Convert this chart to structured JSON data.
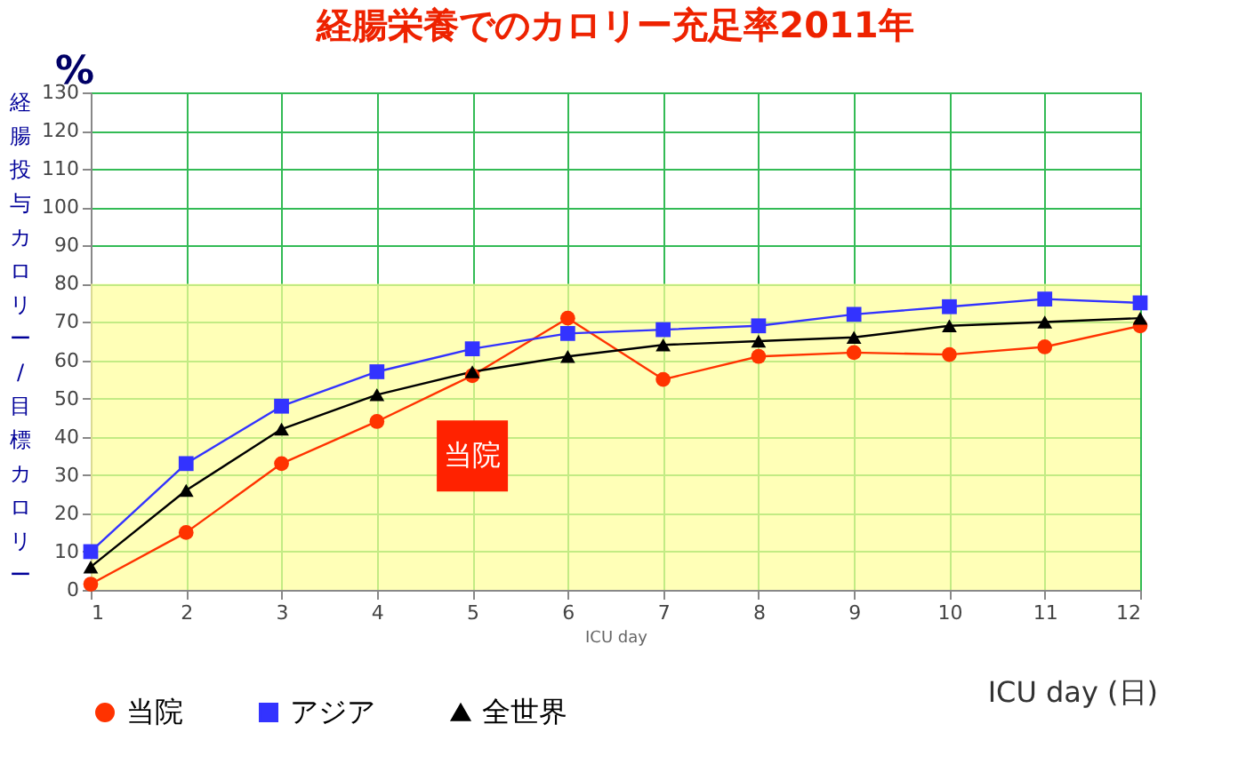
{
  "chart_data": {
    "type": "line",
    "title": "経腸栄養でのカロリー充足率2011年",
    "xlabel": "ICU day",
    "ylabel": "経腸投与カロリー/目標カロリー",
    "x": [
      1,
      2,
      3,
      4,
      5,
      6,
      7,
      8,
      9,
      10,
      11,
      12
    ],
    "series": [
      {
        "name": "当院",
        "color": "#ff3300",
        "marker": "circle",
        "values": [
          1.5,
          15,
          33,
          44,
          56,
          71,
          55,
          61,
          62,
          61.5,
          63.5,
          69
        ]
      },
      {
        "name": "アジア",
        "color": "#3333ff",
        "marker": "square",
        "values": [
          10,
          33,
          48,
          57,
          63,
          67,
          68,
          69,
          72,
          74,
          76,
          75
        ]
      },
      {
        "name": "全世界",
        "color": "#000000",
        "marker": "triangle",
        "values": [
          6,
          26,
          42,
          51,
          57,
          61,
          64,
          65,
          66,
          69,
          70,
          71
        ]
      }
    ],
    "xlim": [
      1,
      12
    ],
    "xticks": [
      1,
      2,
      3,
      4,
      5,
      6,
      7,
      8,
      9,
      10,
      11,
      12
    ],
    "ylim": [
      0,
      130
    ],
    "yticks": [
      0,
      10,
      20,
      30,
      40,
      50,
      60,
      70,
      80,
      90,
      100,
      110,
      120,
      130
    ],
    "bands": [
      {
        "axis": "y",
        "from": 0,
        "to": 80,
        "color": "#ffff99"
      }
    ],
    "annotations": [
      "%",
      {
        "text": "当院",
        "x": 5,
        "y": 35
      },
      "ICU day (日)"
    ],
    "grid": true,
    "legend": "bottom",
    "line_style": "solid"
  }
}
